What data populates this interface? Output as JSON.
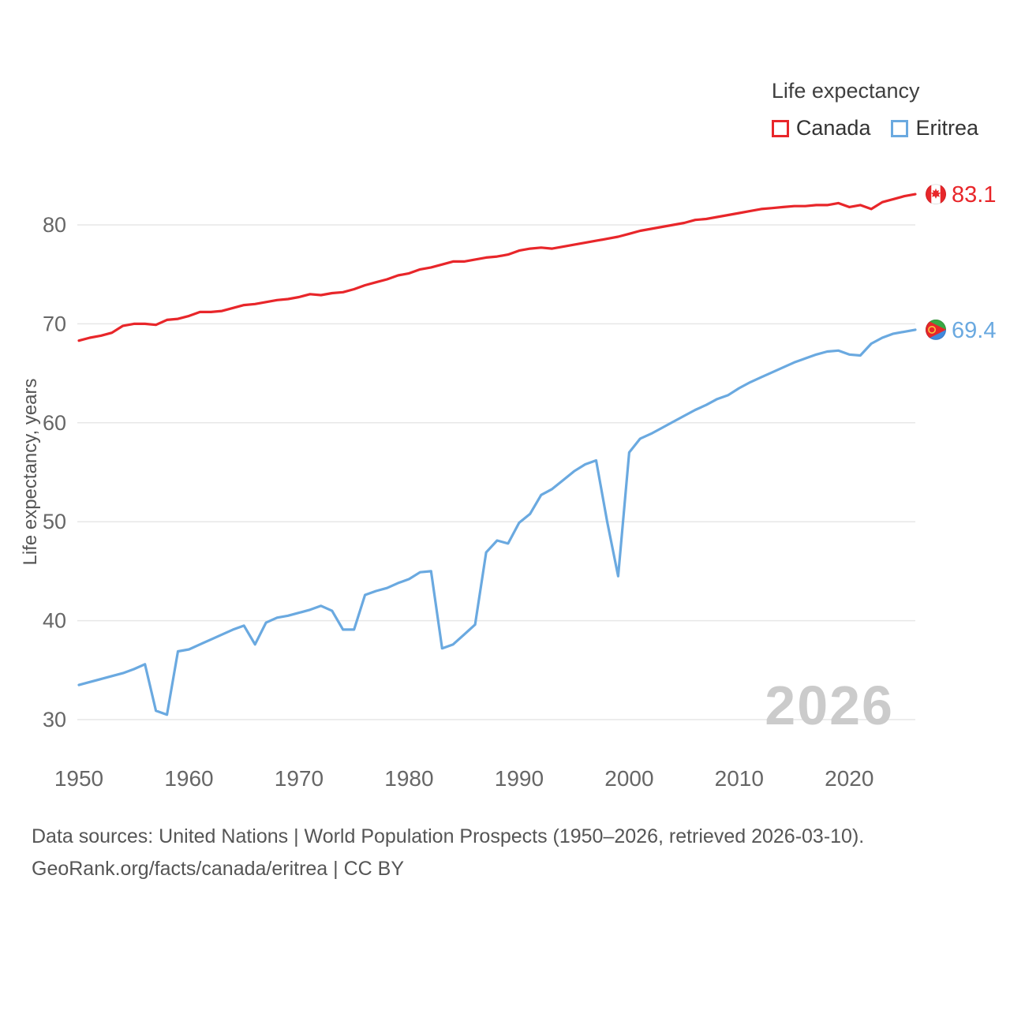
{
  "legend": {
    "title": "Life expectancy",
    "series": [
      {
        "label": "Canada",
        "color": "#e8262a"
      },
      {
        "label": "Eritrea",
        "color": "#6aa9e0"
      }
    ]
  },
  "watermark": "2026",
  "footer": {
    "line1": "Data sources: United Nations | World Population Prospects (1950–2026, retrieved 2026-03-10).",
    "line2": "GeoRank.org/facts/canada/eritrea | CC BY"
  },
  "chart_data": {
    "type": "line",
    "title": "Life expectancy",
    "xlabel": "",
    "ylabel": "Life expectancy, years",
    "xlim": [
      1950,
      2026
    ],
    "ylim": [
      28,
      86
    ],
    "x_ticks": [
      1950,
      1960,
      1970,
      1980,
      1990,
      2000,
      2010,
      2020
    ],
    "y_ticks": [
      30,
      40,
      50,
      60,
      70,
      80
    ],
    "grid": "horizontal",
    "legend_position": "top-right",
    "years": [
      1950,
      1951,
      1952,
      1953,
      1954,
      1955,
      1956,
      1957,
      1958,
      1959,
      1960,
      1961,
      1962,
      1963,
      1964,
      1965,
      1966,
      1967,
      1968,
      1969,
      1970,
      1971,
      1972,
      1973,
      1974,
      1975,
      1976,
      1977,
      1978,
      1979,
      1980,
      1981,
      1982,
      1983,
      1984,
      1985,
      1986,
      1987,
      1988,
      1989,
      1990,
      1991,
      1992,
      1993,
      1994,
      1995,
      1996,
      1997,
      1998,
      1999,
      2000,
      2001,
      2002,
      2003,
      2004,
      2005,
      2006,
      2007,
      2008,
      2009,
      2010,
      2011,
      2012,
      2013,
      2014,
      2015,
      2016,
      2017,
      2018,
      2019,
      2020,
      2021,
      2022,
      2023,
      2024,
      2025,
      2026
    ],
    "series": [
      {
        "name": "Canada",
        "color": "#e8262a",
        "end_label": "83.1",
        "flag": "canada",
        "values": [
          68.3,
          68.6,
          68.8,
          69.1,
          69.8,
          70.0,
          70.0,
          69.9,
          70.4,
          70.5,
          70.8,
          71.2,
          71.2,
          71.3,
          71.6,
          71.9,
          72.0,
          72.2,
          72.4,
          72.5,
          72.7,
          73.0,
          72.9,
          73.1,
          73.2,
          73.5,
          73.9,
          74.2,
          74.5,
          74.9,
          75.1,
          75.5,
          75.7,
          76.0,
          76.3,
          76.3,
          76.5,
          76.7,
          76.8,
          77.0,
          77.4,
          77.6,
          77.7,
          77.6,
          77.8,
          78.0,
          78.2,
          78.4,
          78.6,
          78.8,
          79.1,
          79.4,
          79.6,
          79.8,
          80.0,
          80.2,
          80.5,
          80.6,
          80.8,
          81.0,
          81.2,
          81.4,
          81.6,
          81.7,
          81.8,
          81.9,
          81.9,
          82.0,
          82.0,
          82.2,
          81.8,
          82.0,
          81.6,
          82.3,
          82.6,
          82.9,
          83.1
        ]
      },
      {
        "name": "Eritrea",
        "color": "#6aa9e0",
        "end_label": "69.4",
        "flag": "eritrea",
        "values": [
          33.5,
          33.8,
          34.1,
          34.4,
          34.7,
          35.1,
          35.6,
          30.9,
          30.5,
          36.9,
          37.1,
          37.6,
          38.1,
          38.6,
          39.1,
          39.5,
          37.6,
          39.8,
          40.3,
          40.5,
          40.8,
          41.1,
          41.5,
          41.0,
          39.1,
          39.1,
          42.6,
          43.0,
          43.3,
          43.8,
          44.2,
          44.9,
          45.0,
          37.2,
          37.6,
          38.6,
          39.6,
          46.9,
          48.1,
          47.8,
          49.9,
          50.8,
          52.7,
          53.3,
          54.2,
          55.1,
          55.8,
          56.2,
          50.0,
          44.5,
          57.0,
          58.4,
          58.9,
          59.5,
          60.1,
          60.7,
          61.3,
          61.8,
          62.4,
          62.8,
          63.5,
          64.1,
          64.6,
          65.1,
          65.6,
          66.1,
          66.5,
          66.9,
          67.2,
          67.3,
          66.9,
          66.8,
          68.0,
          68.6,
          69.0,
          69.2,
          69.4
        ]
      }
    ]
  }
}
